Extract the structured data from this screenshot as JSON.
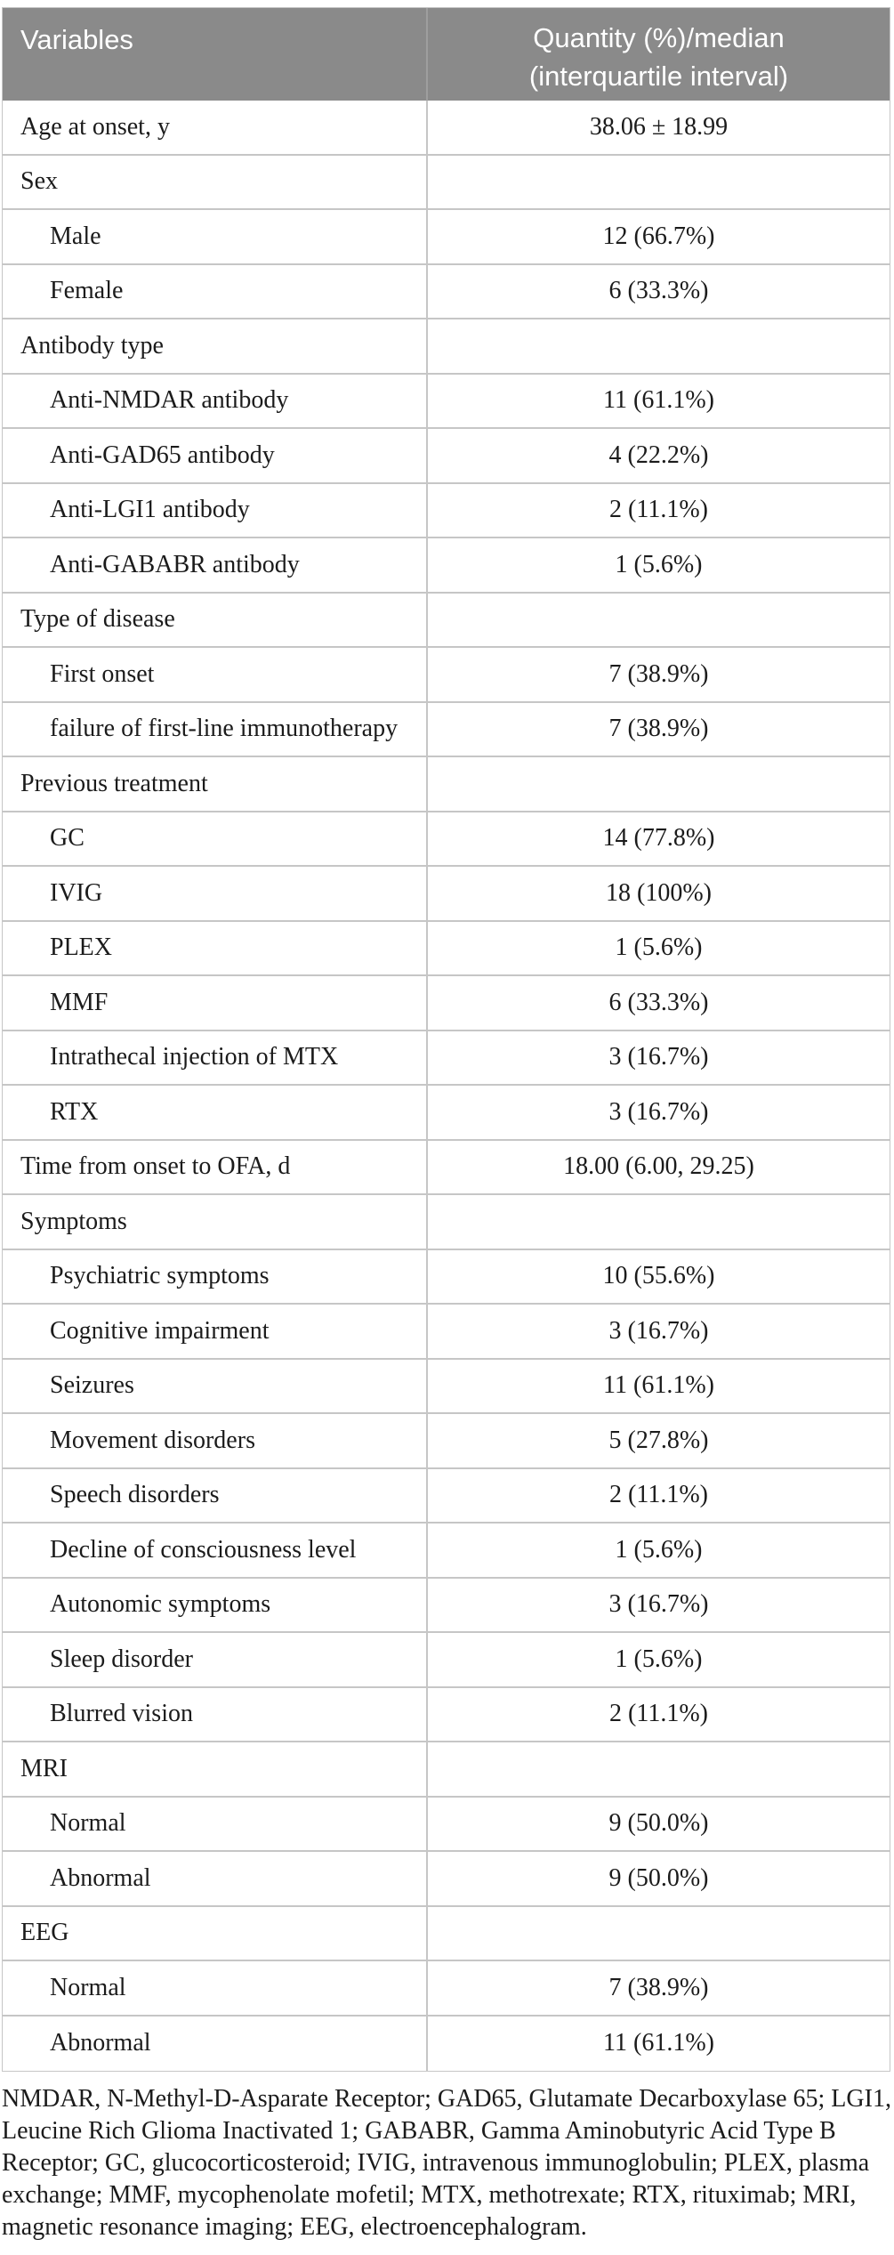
{
  "table": {
    "header": {
      "col1": "Variables",
      "col2": "Quantity (%)/median (interquartile interval)"
    },
    "rows": [
      {
        "label": "Age at onset, y",
        "value": "38.06 ± 18.99",
        "indent": false
      },
      {
        "label": "Sex",
        "value": "",
        "indent": false
      },
      {
        "label": "Male",
        "value": "12 (66.7%)",
        "indent": true
      },
      {
        "label": "Female",
        "value": "6 (33.3%)",
        "indent": true
      },
      {
        "label": "Antibody type",
        "value": "",
        "indent": false
      },
      {
        "label": "Anti-NMDAR antibody",
        "value": "11 (61.1%)",
        "indent": true
      },
      {
        "label": "Anti-GAD65 antibody",
        "value": "4 (22.2%)",
        "indent": true
      },
      {
        "label": "Anti-LGI1 antibody",
        "value": "2 (11.1%)",
        "indent": true
      },
      {
        "label": "Anti-GABABR antibody",
        "value": "1 (5.6%)",
        "indent": true
      },
      {
        "label": "Type of disease",
        "value": "",
        "indent": false
      },
      {
        "label": "First onset",
        "value": "7 (38.9%)",
        "indent": true
      },
      {
        "label": "failure of first-line immunotherapy",
        "value": "7 (38.9%)",
        "indent": true
      },
      {
        "label": "Previous treatment",
        "value": "",
        "indent": false
      },
      {
        "label": "GC",
        "value": "14 (77.8%)",
        "indent": true
      },
      {
        "label": "IVIG",
        "value": "18 (100%)",
        "indent": true
      },
      {
        "label": "PLEX",
        "value": "1 (5.6%)",
        "indent": true
      },
      {
        "label": "MMF",
        "value": "6 (33.3%)",
        "indent": true
      },
      {
        "label": "Intrathecal injection of MTX",
        "value": "3 (16.7%)",
        "indent": true
      },
      {
        "label": "RTX",
        "value": "3 (16.7%)",
        "indent": true
      },
      {
        "label": "Time from onset to OFA, d",
        "value": "18.00 (6.00, 29.25)",
        "indent": false
      },
      {
        "label": "Symptoms",
        "value": "",
        "indent": false
      },
      {
        "label": "Psychiatric symptoms",
        "value": "10 (55.6%)",
        "indent": true
      },
      {
        "label": "Cognitive impairment",
        "value": "3 (16.7%)",
        "indent": true
      },
      {
        "label": "Seizures",
        "value": "11 (61.1%)",
        "indent": true
      },
      {
        "label": "Movement disorders",
        "value": "5 (27.8%)",
        "indent": true
      },
      {
        "label": "Speech disorders",
        "value": "2 (11.1%)",
        "indent": true
      },
      {
        "label": "Decline of consciousness level",
        "value": "1 (5.6%)",
        "indent": true
      },
      {
        "label": "Autonomic symptoms",
        "value": "3 (16.7%)",
        "indent": true
      },
      {
        "label": "Sleep disorder",
        "value": "1 (5.6%)",
        "indent": true
      },
      {
        "label": "Blurred vision",
        "value": "2 (11.1%)",
        "indent": true
      },
      {
        "label": "MRI",
        "value": "",
        "indent": false
      },
      {
        "label": "Normal",
        "value": "9 (50.0%)",
        "indent": true
      },
      {
        "label": "Abnormal",
        "value": "9 (50.0%)",
        "indent": true
      },
      {
        "label": "EEG",
        "value": "",
        "indent": false
      },
      {
        "label": "Normal",
        "value": "7 (38.9%)",
        "indent": true
      },
      {
        "label": "Abnormal",
        "value": "11 (61.1%)",
        "indent": true
      }
    ],
    "footnote": "NMDAR, N-Methyl-D-Asparate Receptor; GAD65, Glutamate Decarboxylase 65; LGI1, Leucine Rich Glioma Inactivated 1; GABABR, Gamma Aminobutyric Acid Type B Receptor; GC, glucocorticosteroid; IVIG, intravenous immunoglobulin; PLEX, plasma exchange; MMF, mycophenolate mofetil; MTX, methotrexate; RTX, rituximab; MRI, magnetic resonance imaging; EEG, electroencephalogram."
  },
  "colors": {
    "header_bg": "#8a8a8a",
    "header_text": "#ffffff",
    "border": "#c6c6c6",
    "text": "#1b1b1b"
  }
}
